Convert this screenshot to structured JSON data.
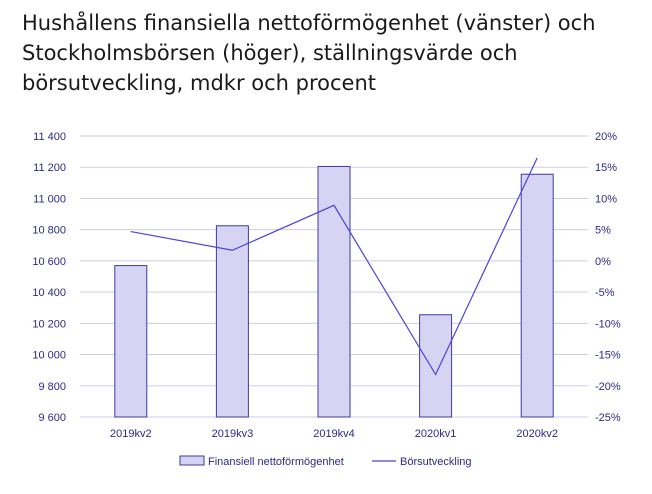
{
  "title": "Hushållens finansiella nettoförmögenhet (vänster) och Stockholmsbörsen (höger), ställningsvärde och börsutveckling, mdkr och procent",
  "colors": {
    "bar_fill": "#d6d4f2",
    "bar_stroke": "#3e3aa8",
    "line": "#4b44d6",
    "grid": "#cfcde8",
    "tick_text": "#2a2a8a"
  },
  "chart_data": {
    "type": "bar+line",
    "categories": [
      "2019kv2",
      "2019kv3",
      "2019kv4",
      "2020kv1",
      "2020kv2"
    ],
    "series": [
      {
        "name": "Finansiell nettoförmögenhet",
        "type": "bar",
        "axis": "left",
        "values": [
          10570,
          10825,
          11205,
          10255,
          11155
        ]
      },
      {
        "name": "Börsutveckling",
        "type": "line",
        "axis": "right",
        "values": [
          4.7,
          1.7,
          8.9,
          -18.2,
          16.5
        ]
      }
    ],
    "left_axis": {
      "ylim": [
        9600,
        11400
      ],
      "ticks": [
        9600,
        9800,
        10000,
        10200,
        10400,
        10600,
        10800,
        11000,
        11200,
        11400
      ],
      "tick_labels": [
        "9 600",
        "9 800",
        "10 000",
        "10 200",
        "10 400",
        "10 600",
        "10 800",
        "11 000",
        "11 200",
        "11 400"
      ]
    },
    "right_axis": {
      "ylim": [
        -25,
        20
      ],
      "ticks": [
        -25,
        -20,
        -15,
        -10,
        -5,
        0,
        5,
        10,
        15,
        20
      ],
      "tick_labels": [
        "-25%",
        "-20%",
        "-15%",
        "-10%",
        "-5%",
        "0%",
        "5%",
        "10%",
        "15%",
        "20%"
      ]
    },
    "grid": true,
    "legend": "bottom"
  }
}
